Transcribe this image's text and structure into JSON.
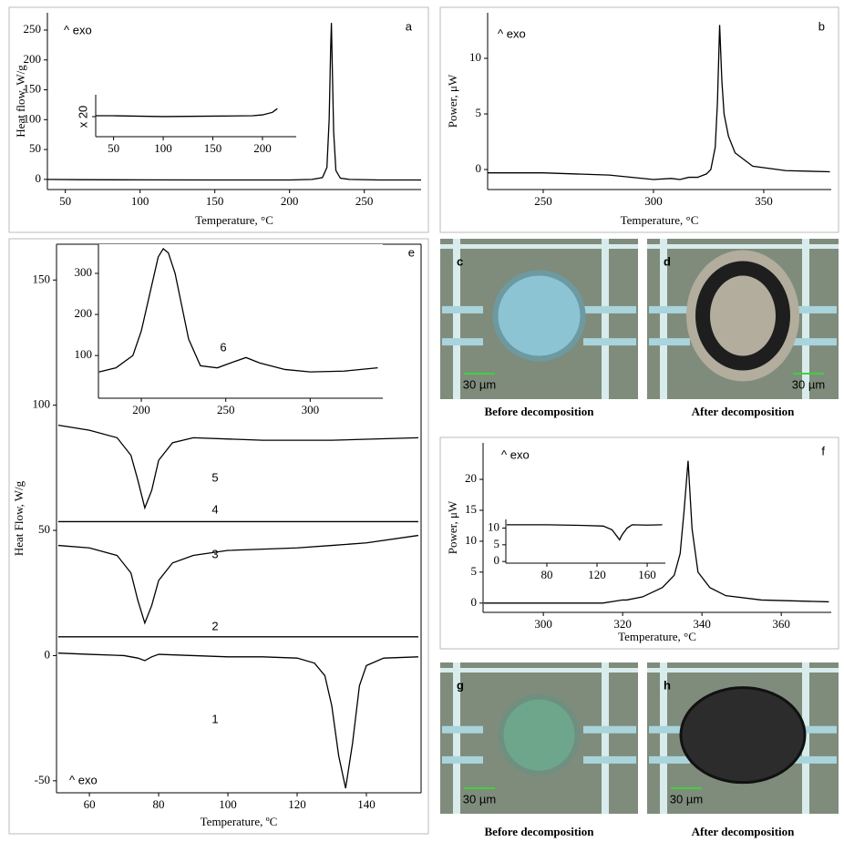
{
  "chart_data": [
    {
      "type": "line",
      "letter": "a",
      "annotation": "^ exo",
      "x_label": "Temperature, °C",
      "y_label": "Heat flow, W/g",
      "xlim": [
        38,
        288
      ],
      "ylim": [
        -17,
        279
      ],
      "xticks": [
        50,
        100,
        150,
        200,
        250
      ],
      "yticks": [
        0,
        50,
        100,
        150,
        200,
        250
      ],
      "series": [
        {
          "color": "#000000",
          "x": [
            38,
            60,
            100,
            150,
            200,
            215,
            222,
            225,
            226.5,
            227.5,
            228,
            228.5,
            229.5,
            231,
            234,
            240,
            260,
            288
          ],
          "values": [
            0,
            -0.5,
            -0.8,
            -1,
            -1,
            0,
            3,
            20,
            100,
            220,
            262,
            200,
            80,
            15,
            2,
            0,
            -1,
            -1
          ]
        }
      ],
      "inset": {
        "y_label": "x 20",
        "xlim": [
          32,
          234
        ],
        "ylim": [
          0,
          1
        ],
        "xticks": [
          50,
          100,
          150,
          200
        ],
        "series": [
          {
            "color": "#000000",
            "x": [
              32,
              50,
              100,
              150,
              190,
              200,
              210,
              215
            ],
            "values": [
              0.5,
              0.5,
              0.48,
              0.49,
              0.5,
              0.52,
              0.58,
              0.67
            ]
          }
        ]
      }
    },
    {
      "type": "line",
      "letter": "b",
      "annotation": "^ exo",
      "x_label": "Temperature, °C",
      "y_label": "Power, μW",
      "xlim": [
        224.8,
        380.6
      ],
      "ylim": [
        -1.8,
        14.1
      ],
      "xticks": [
        250,
        300,
        350
      ],
      "yticks": [
        0,
        5,
        10
      ],
      "series": [
        {
          "color": "#000000",
          "x": [
            225,
            250,
            280,
            300,
            308,
            312,
            316,
            320,
            324,
            326,
            328,
            329,
            330,
            331,
            332,
            334,
            337,
            345,
            360,
            380
          ],
          "values": [
            -0.3,
            -0.3,
            -0.5,
            -0.9,
            -0.8,
            -0.9,
            -0.7,
            -0.7,
            -0.4,
            0,
            2,
            6,
            13,
            8,
            5,
            3,
            1.5,
            0.3,
            -0.1,
            -0.2
          ]
        }
      ]
    },
    {
      "type": "line",
      "letter": "e",
      "annotation": "^ exo",
      "x_label": "Temperature, ºC",
      "y_label": "Heat Flow, W/g",
      "xlim": [
        50.5,
        155.8
      ],
      "ylim": [
        -54.8,
        164.3
      ],
      "xticks": [
        60,
        80,
        100,
        120,
        140
      ],
      "yticks": [
        -50,
        0,
        50,
        100,
        150
      ],
      "series": [
        {
          "name": "1",
          "color": "#000000",
          "x": [
            51,
            60,
            70,
            74,
            76,
            78,
            80,
            90,
            100,
            110,
            120,
            125,
            128,
            130,
            132,
            134,
            136,
            138,
            140,
            145,
            155
          ],
          "values": [
            1,
            0.5,
            0,
            -1,
            -2,
            -0.5,
            0.5,
            0,
            -0.5,
            -0.5,
            -1,
            -3,
            -8,
            -20,
            -40,
            -53,
            -35,
            -12,
            -4,
            -1,
            -0.5
          ]
        },
        {
          "name": "2",
          "color": "#000000",
          "x": [
            51,
            155
          ],
          "values": [
            7.5,
            7.5
          ]
        },
        {
          "name": "3",
          "color": "#000000",
          "x": [
            51,
            60,
            68,
            72,
            74,
            76,
            78,
            80,
            84,
            90,
            100,
            120,
            130,
            140,
            155
          ],
          "values": [
            44,
            43,
            40,
            33,
            22,
            13,
            20,
            30,
            37,
            40,
            42,
            43,
            44,
            45,
            48
          ]
        },
        {
          "name": "4",
          "color": "#000000",
          "x": [
            51,
            155
          ],
          "values": [
            53.5,
            53.5
          ]
        },
        {
          "name": "5",
          "color": "#000000",
          "x": [
            51,
            60,
            68,
            72,
            74,
            76,
            78,
            80,
            84,
            90,
            110,
            130,
            155
          ],
          "values": [
            92,
            90,
            87,
            80,
            70,
            59,
            66,
            78,
            85,
            87,
            86,
            86,
            87
          ]
        }
      ],
      "inset": {
        "xlim": [
          174.6,
          343
        ],
        "ylim": [
          -4,
          371
        ],
        "xticks": [
          200,
          250,
          300
        ],
        "yticks": [
          100,
          200,
          300
        ],
        "series": [
          {
            "name": "6",
            "color": "#000000",
            "x": [
              175,
              185,
              195,
              200,
              205,
              210,
              213,
              216,
              220,
              228,
              235,
              245,
              255,
              262,
              270,
              285,
              300,
              320,
              340
            ],
            "values": [
              60,
              70,
              100,
              160,
              250,
              340,
              360,
              350,
              300,
              140,
              75,
              70,
              85,
              95,
              82,
              66,
              60,
              62,
              70
            ]
          }
        ]
      }
    },
    {
      "type": "line",
      "letter": "f",
      "annotation": "^ exo",
      "x_label": "Temperature, °C",
      "y_label": "Power, μW",
      "xlim": [
        284.8,
        372.6
      ],
      "ylim": [
        -1.5,
        25.9
      ],
      "xticks": [
        300,
        320,
        340,
        360
      ],
      "yticks": [
        0,
        5,
        10,
        15,
        20
      ],
      "series": [
        {
          "color": "#000000",
          "x": [
            285,
            300,
            315,
            318,
            320,
            321,
            325,
            330,
            333,
            334.5,
            335.5,
            336.5,
            337.5,
            339,
            342,
            346,
            355,
            372
          ],
          "values": [
            0,
            0,
            0,
            0.3,
            0.5,
            0.5,
            1,
            2.5,
            4.5,
            8,
            15,
            23,
            12,
            5,
            2.5,
            1.2,
            0.5,
            0.2
          ]
        }
      ],
      "inset": {
        "xlim": [
          47.3,
          174.5
        ],
        "ylim": [
          -0.5,
          12.6
        ],
        "xticks": [
          80,
          120,
          160
        ],
        "yticks": [
          0,
          5,
          10
        ],
        "series": [
          {
            "color": "#000000",
            "x": [
              48,
              80,
              110,
              125,
              132,
              136,
              138,
              140,
              144,
              148,
              160,
              172
            ],
            "values": [
              11,
              11,
              10.8,
              10.6,
              9.5,
              7.5,
              6.5,
              8,
              10,
              11,
              10.9,
              11
            ]
          }
        ]
      }
    }
  ],
  "micrographs": [
    {
      "letter": "c",
      "scale": "30 µm",
      "caption": "Before decomposition"
    },
    {
      "letter": "d",
      "scale": "30 µm",
      "caption": "After decomposition"
    },
    {
      "letter": "g",
      "scale": "30 µm",
      "caption": "Before decomposition"
    },
    {
      "letter": "h",
      "scale": "30 µm",
      "caption": "After decomposition"
    }
  ]
}
